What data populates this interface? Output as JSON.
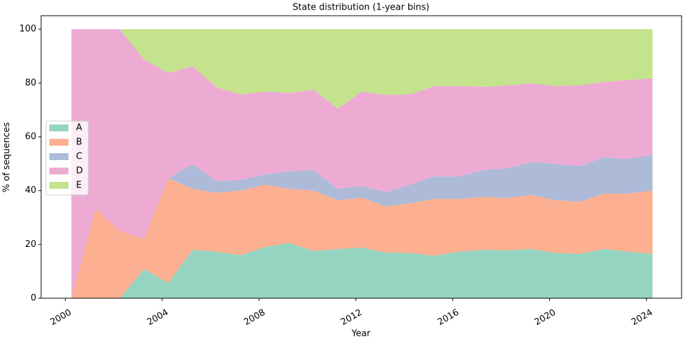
{
  "chart_data": {
    "type": "stacked-area",
    "title": "State distribution (1-year bins)",
    "x_label": "Year",
    "y_label": "% of sequences",
    "x": [
      2000.25,
      2001.25,
      2002.25,
      2003.25,
      2004.25,
      2005.25,
      2006.25,
      2007.25,
      2008.25,
      2009.25,
      2010.25,
      2011.25,
      2012.25,
      2013.25,
      2014.25,
      2015.25,
      2016.25,
      2017.25,
      2018.25,
      2019.25,
      2020.25,
      2021.25,
      2022.25,
      2023.25,
      2024.25
    ],
    "series": [
      {
        "name": "A",
        "color": "#94d4c0",
        "values": [
          0,
          0,
          0,
          10.9,
          5.6,
          18,
          17.3,
          16,
          19,
          20.6,
          17.5,
          18.3,
          18.8,
          17,
          16.8,
          15.8,
          17.3,
          18,
          17.8,
          18.3,
          16.8,
          16.5,
          18.3,
          17.3,
          16.5
        ]
      },
      {
        "name": "B",
        "color": "#fcaf91",
        "values": [
          0,
          33.3,
          25,
          11.2,
          38.9,
          22.7,
          21.9,
          24,
          23.2,
          20.1,
          22.5,
          18.1,
          18.6,
          17.1,
          18.6,
          21.1,
          19.6,
          19.7,
          19.4,
          20.1,
          19.6,
          19.4,
          20.6,
          21.6,
          23.5
        ]
      },
      {
        "name": "C",
        "color": "#adbad8",
        "values": [
          0,
          0,
          0,
          0,
          0,
          9.2,
          4.3,
          4,
          3.8,
          6.4,
          7.6,
          4.3,
          4.3,
          5.3,
          6.8,
          8.4,
          8.4,
          9.9,
          11.1,
          12.2,
          13.5,
          13.2,
          13.5,
          12.8,
          13.4
        ]
      },
      {
        "name": "D",
        "color": "#edabd3",
        "values": [
          100,
          66.7,
          75,
          66.7,
          39.2,
          36.4,
          34.9,
          31.8,
          30.8,
          29.2,
          30,
          29.8,
          35.1,
          36.2,
          33.6,
          33.6,
          33.6,
          31,
          30.8,
          29.3,
          29,
          30,
          28,
          29.5,
          28.3
        ]
      },
      {
        "name": "E",
        "color": "#c3e38c",
        "values": [
          0,
          0,
          0,
          11.2,
          16.3,
          13.7,
          21.6,
          24.2,
          23.2,
          23.7,
          22.4,
          29.5,
          23.2,
          24.4,
          24.2,
          21.1,
          21.1,
          21.4,
          20.9,
          20.1,
          21.1,
          20.9,
          19.6,
          18.8,
          18.3
        ]
      }
    ],
    "xlim": [
      1999.0,
      2025.45
    ],
    "xticks": [
      2000,
      2004,
      2008,
      2012,
      2016,
      2020,
      2024
    ],
    "ylim": [
      0,
      105
    ],
    "yticks": [
      0,
      20,
      40,
      60,
      80,
      100
    ],
    "legend": "left",
    "grid": false
  }
}
